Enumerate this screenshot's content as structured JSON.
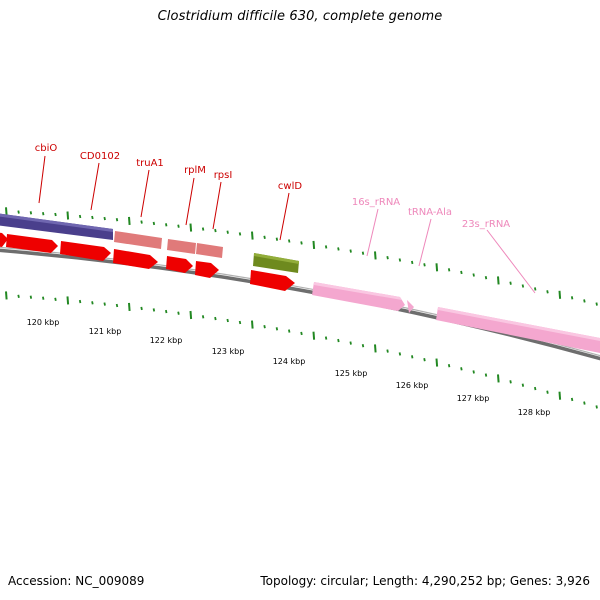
{
  "title": "Clostridium difficile 630, complete genome",
  "footer": {
    "accession": "Accession: NC_009089",
    "summary": "Topology: circular; Length: 4,290,252 bp; Genes: 3,926"
  },
  "colors": {
    "gene_label": "#cc0000",
    "rna_label": "#ee88bb",
    "tick": "#228822",
    "backbone": "#777777"
  },
  "kbp_ticks": [
    "120 kbp",
    "121 kbp",
    "122 kbp",
    "123 kbp",
    "124 kbp",
    "125 kbp",
    "126 kbp",
    "127 kbp",
    "128 kbp"
  ],
  "features": [
    {
      "label": "cbiO",
      "kind": "gene"
    },
    {
      "label": "CD0102",
      "kind": "gene"
    },
    {
      "label": "truA1",
      "kind": "gene"
    },
    {
      "label": "rplM",
      "kind": "gene"
    },
    {
      "label": "rpsI",
      "kind": "gene"
    },
    {
      "label": "cwlD",
      "kind": "gene"
    },
    {
      "label": "16s_rRNA",
      "kind": "rna"
    },
    {
      "label": "tRNA-Ala",
      "kind": "rna"
    },
    {
      "label": "23s_rRNA",
      "kind": "rna"
    }
  ]
}
